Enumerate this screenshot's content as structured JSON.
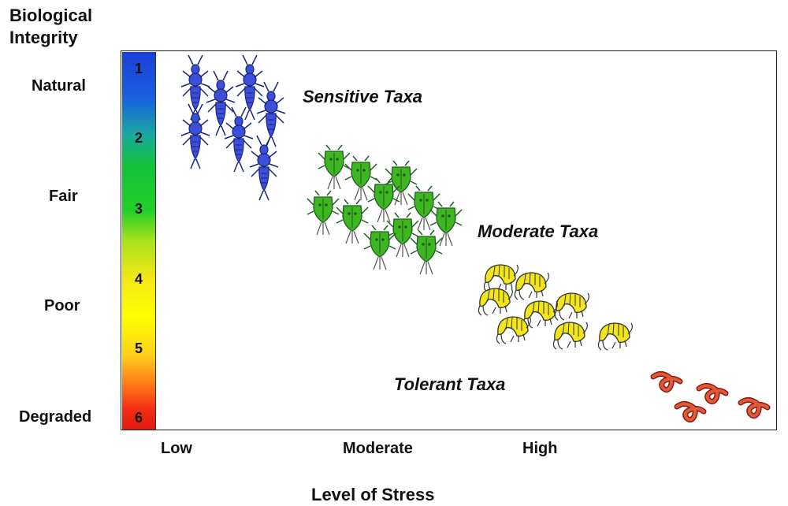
{
  "title": "Biological Integrity",
  "integrity_levels": [
    "Natural",
    "Fair",
    "Poor",
    "Degraded"
  ],
  "scale_numbers": [
    "1",
    "2",
    "3",
    "4",
    "5",
    "6"
  ],
  "x_ticks": [
    "Low",
    "Moderate",
    "High"
  ],
  "x_title": "Level of Stress",
  "taxa": {
    "sensitive": "Sensitive Taxa",
    "moderate": "Moderate Taxa",
    "tolerant": "Tolerant Taxa"
  },
  "colors": {
    "sensitive": "#3b4fd8",
    "moderate": "#3fb51f",
    "tolerant_shrimp": "#f2e51a",
    "worm": "#d8462b"
  },
  "icons": {
    "sensitive": "stonefly-icon",
    "moderate": "water-mite-icon",
    "tolerant": "amphipod-icon",
    "worm": "worm-icon"
  }
}
